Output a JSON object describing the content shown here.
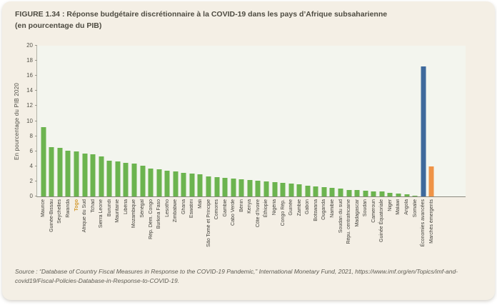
{
  "figure": {
    "label": "FIGURE 1.34 :",
    "title": "Réponse budgétaire discrétionnaire à la COVID-19 dans les pays d’Afrique subsaharienne",
    "subtitle": "(en pourcentage du PIB)"
  },
  "chart_data": {
    "type": "bar",
    "title": "Réponse budgétaire discrétionnaire à la COVID-19 dans les pays d’Afrique subsaharienne (en pourcentage du PIB)",
    "xlabel": "",
    "ylabel": "En pourcentage du PIB 2020",
    "ylim": [
      0,
      20
    ],
    "ytick_step": 2,
    "grid": false,
    "legend_position": "none",
    "categories": [
      "Maurice",
      "Guinée-Bissau",
      "Seychelles",
      "Rwanda",
      "Togo",
      "Afrique du Sud",
      "Tchad",
      "Sierra Leone",
      "Burundi",
      "Mauritanie",
      "Libéria",
      "Mozambique",
      "Sénégal",
      "Rép. Dém. Congo",
      "Burkina Faso",
      "Lesotho",
      "Zimbabwe",
      "Ghana",
      "Eswatini",
      "Mali",
      "São Tomé et Príncipe",
      "Comores",
      "Gambie",
      "Cabo Verde",
      "Bénin",
      "Kenya",
      "Côte d’Ivoire",
      "Éthiopie",
      "Nigéria",
      "Congo Rép.",
      "Guinée",
      "Zambie",
      "Gabon",
      "Botswana",
      "Ouganda",
      "Namibie",
      "Soudan du sud",
      "Répu. centrafricaine",
      "Madagascar",
      "Soudan",
      "Cameroun",
      "Guinée Équatoriale",
      "Niger",
      "Malawi",
      "Angola",
      "Somalie",
      "Économies avancées",
      "Marchés émergents"
    ],
    "values": [
      9.2,
      6.5,
      6.4,
      6.1,
      6.0,
      5.7,
      5.6,
      5.3,
      4.7,
      4.6,
      4.5,
      4.4,
      4.1,
      3.7,
      3.6,
      3.4,
      3.3,
      3.1,
      3.0,
      2.9,
      2.7,
      2.6,
      2.5,
      2.4,
      2.3,
      2.2,
      2.1,
      2.0,
      1.9,
      1.8,
      1.7,
      1.6,
      1.4,
      1.3,
      1.2,
      1.1,
      1.0,
      0.9,
      0.9,
      0.8,
      0.7,
      0.7,
      0.5,
      0.4,
      0.3,
      0.1,
      17.3,
      4.0
    ],
    "bar_color_default": "#6cb44f",
    "bar_color_overrides": {
      "Économies avancées": "#3e699c",
      "Marchés émergents": "#ef9346"
    },
    "highlighted_category": "Togo",
    "highlight_label_color": "#d39a2f"
  },
  "source": {
    "text": "Source : “Database of Country Fiscal Measures in Response to the COVID-19 Pandemic,” International Monetary Fund, 2021, https://www.imf.org/en/Topics/imf-and-covid19/Fiscal-Policies-Database-in-Response-to-COVID-19."
  },
  "colors": {
    "card_background": "#f4efe5",
    "plot_background": "#f3f5ee",
    "green_bar": "#6cb44f",
    "blue_bar": "#3e699c",
    "orange_bar": "#ef9346",
    "title_text": "#4d4b41"
  }
}
